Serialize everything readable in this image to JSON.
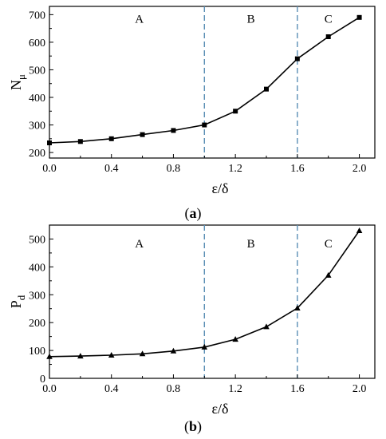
{
  "chart_data": [
    {
      "type": "line",
      "caption_open": "(",
      "caption_letter": "a",
      "caption_close": ")",
      "xlabel": "ε/δ",
      "ylabel_main": "N",
      "ylabel_sub": "μ",
      "xlim": [
        0.0,
        2.1
      ],
      "ylim": [
        180,
        730
      ],
      "xticks": [
        "0.0",
        "0.4",
        "0.8",
        "1.2",
        "1.6",
        "2.0"
      ],
      "xtick_values": [
        0.0,
        0.4,
        0.8,
        1.2,
        1.6,
        2.0
      ],
      "yticks": [
        "200",
        "300",
        "400",
        "500",
        "600",
        "700"
      ],
      "ytick_values": [
        200,
        300,
        400,
        500,
        600,
        700
      ],
      "marker": "square",
      "x": [
        0.0,
        0.2,
        0.4,
        0.6,
        0.8,
        1.0,
        1.2,
        1.4,
        1.6,
        1.8,
        2.0
      ],
      "y": [
        235,
        240,
        250,
        265,
        280,
        300,
        350,
        430,
        540,
        620,
        690
      ],
      "dividers": [
        1.0,
        1.6
      ],
      "regions": [
        {
          "label": "A",
          "x": 0.58
        },
        {
          "label": "B",
          "x": 1.3
        },
        {
          "label": "C",
          "x": 1.8
        }
      ],
      "region_label_y": 670
    },
    {
      "type": "line",
      "caption_open": "(",
      "caption_letter": "b",
      "caption_close": ")",
      "xlabel": "ε/δ",
      "ylabel_main": "P",
      "ylabel_sub": "d",
      "xlim": [
        0.0,
        2.1
      ],
      "ylim": [
        0,
        550
      ],
      "xticks": [
        "0.0",
        "0.4",
        "0.8",
        "1.2",
        "1.6",
        "2.0"
      ],
      "xtick_values": [
        0.0,
        0.4,
        0.8,
        1.2,
        1.6,
        2.0
      ],
      "yticks": [
        "0",
        "100",
        "200",
        "300",
        "400",
        "500"
      ],
      "ytick_values": [
        0,
        100,
        200,
        300,
        400,
        500
      ],
      "marker": "triangle",
      "x": [
        0.0,
        0.2,
        0.4,
        0.6,
        0.8,
        1.0,
        1.2,
        1.4,
        1.6,
        1.8,
        2.0
      ],
      "y": [
        78,
        80,
        83,
        88,
        98,
        112,
        140,
        185,
        252,
        370,
        530
      ],
      "dividers": [
        1.0,
        1.6
      ],
      "regions": [
        {
          "label": "A",
          "x": 0.58
        },
        {
          "label": "B",
          "x": 1.3
        },
        {
          "label": "C",
          "x": 1.8
        }
      ],
      "region_label_y": 470
    }
  ]
}
